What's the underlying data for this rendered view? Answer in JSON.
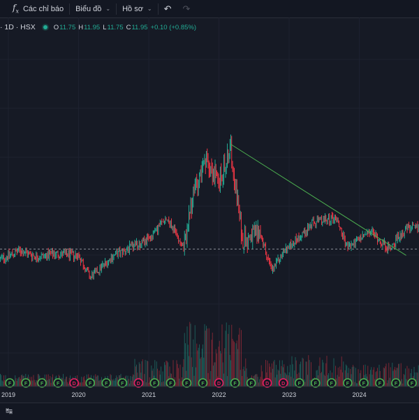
{
  "toolbar": {
    "indicators_icon": "fx-icon",
    "indicators_label": "Các chỉ báo",
    "chart_label": "Biểu đồ",
    "profile_label": "Hồ sơ",
    "undo_icon": "↶",
    "redo_icon": "↷"
  },
  "legend": {
    "symbol": "· 1D · HSX",
    "o_label": "O",
    "o_value": "11.75",
    "h_label": "H",
    "h_value": "11.95",
    "l_label": "L",
    "l_value": "11.75",
    "c_label": "C",
    "c_value": "11.95",
    "change": "+0.10 (+0.85%)"
  },
  "colors": {
    "up": "#22ab94",
    "down": "#f23645",
    "trend": "#4caf50",
    "bg": "#161a25",
    "grid": "#1e2230"
  },
  "chart_data": {
    "type": "candlestick",
    "x_tick_labels": [
      "2019",
      "2020",
      "2021",
      "2022",
      "2023",
      "2024"
    ],
    "approx_close_series": [
      {
        "date": "2018-10",
        "close": 9.5
      },
      {
        "date": "2019-03",
        "close": 10.3
      },
      {
        "date": "2019-06",
        "close": 9.9
      },
      {
        "date": "2019-09",
        "close": 10.1
      },
      {
        "date": "2020-01",
        "close": 10.0
      },
      {
        "date": "2020-03",
        "close": 8.6
      },
      {
        "date": "2020-07",
        "close": 10.0
      },
      {
        "date": "2021-01",
        "close": 11.0
      },
      {
        "date": "2021-04",
        "close": 12.4
      },
      {
        "date": "2021-07",
        "close": 10.5
      },
      {
        "date": "2021-09",
        "close": 14.5
      },
      {
        "date": "2021-11",
        "close": 16.0
      },
      {
        "date": "2022-01",
        "close": 14.5
      },
      {
        "date": "2022-03",
        "close": 16.8
      },
      {
        "date": "2022-05",
        "close": 11.0
      },
      {
        "date": "2022-08",
        "close": 11.5
      },
      {
        "date": "2022-10",
        "close": 9.0
      },
      {
        "date": "2022-12",
        "close": 10.2
      },
      {
        "date": "2023-05",
        "close": 12.0
      },
      {
        "date": "2023-09",
        "close": 12.4
      },
      {
        "date": "2023-11",
        "close": 10.5
      },
      {
        "date": "2024-03",
        "close": 11.5
      },
      {
        "date": "2024-06",
        "close": 10.4
      },
      {
        "date": "2024-09",
        "close": 11.7
      }
    ],
    "dashed_reference_level": 10.4,
    "trendline": {
      "from": {
        "date": "2022-03",
        "price": 17.0
      },
      "to": {
        "date": "2024-09",
        "price": 10.0
      }
    },
    "event_markers": [
      "F",
      "F",
      "F",
      "F",
      "D",
      "F",
      "F",
      "F",
      "D",
      "F",
      "F",
      "F",
      "F",
      "D",
      "F",
      "F",
      "D",
      "D",
      "F",
      "F",
      "F",
      "F",
      "F",
      "F",
      "F",
      "F"
    ]
  }
}
